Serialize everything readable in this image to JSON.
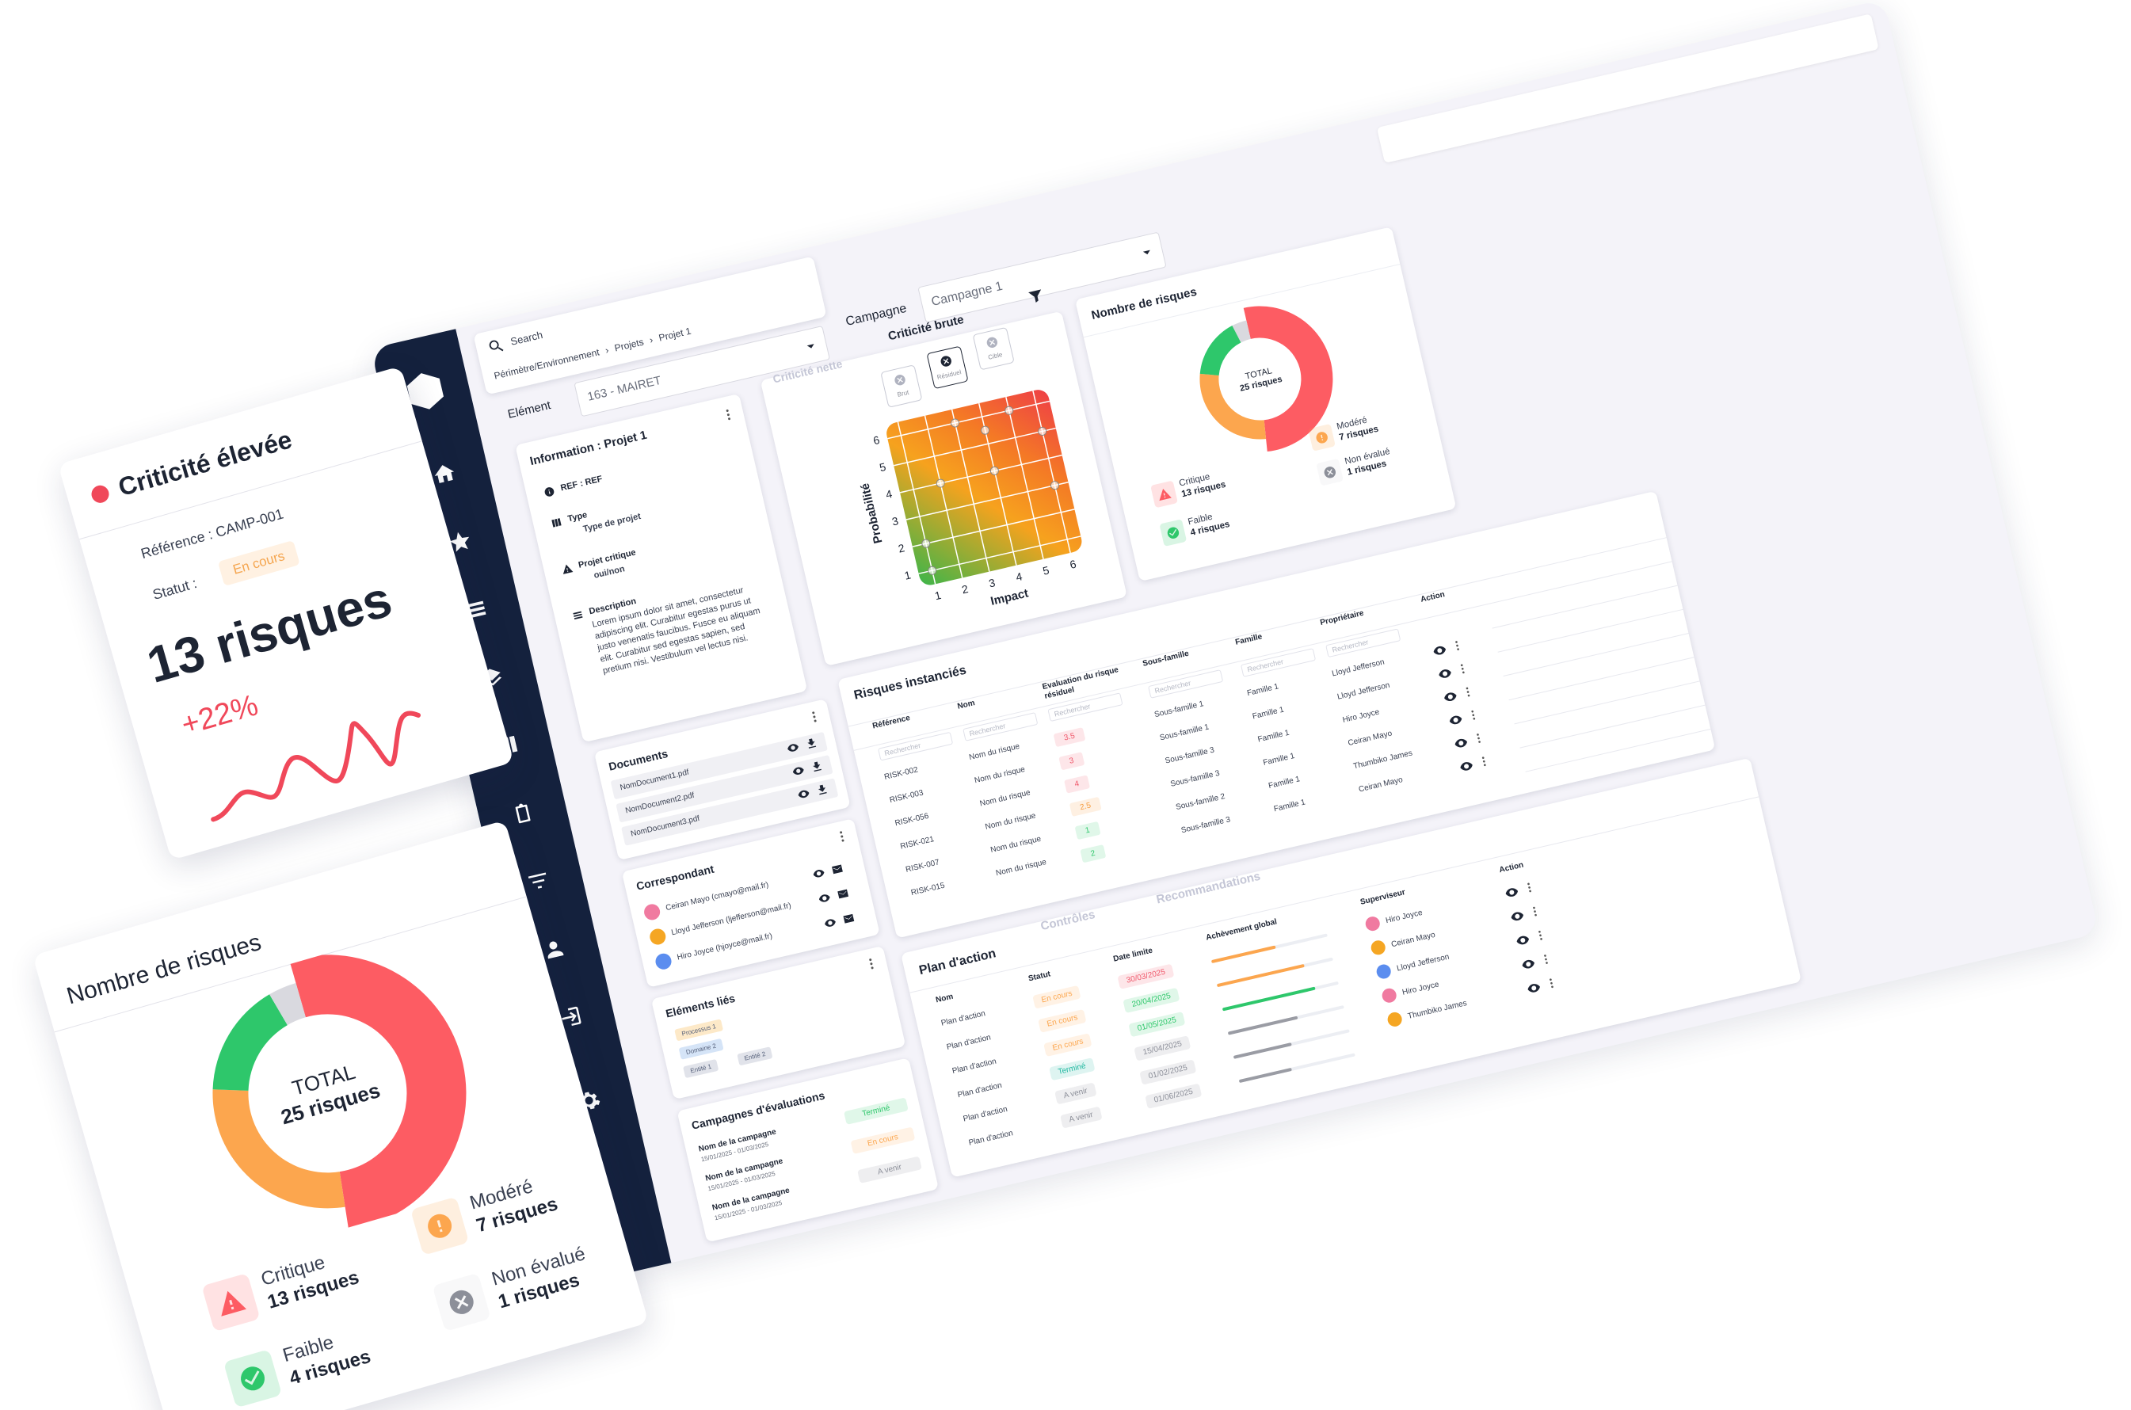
{
  "kpi_card": {
    "title": "Criticité élevée",
    "reference": "Référence : CAMP-001",
    "status_label": "Statut :",
    "status": "En cours",
    "count": "13 risques",
    "change": "+22%"
  },
  "risk_summary": {
    "title": "Nombre de risques",
    "total_caption": "TOTAL",
    "total": "25 risques",
    "segments": [
      {
        "name": "Critique",
        "count": 13,
        "label": "13 risques",
        "color": "#fd5c63"
      },
      {
        "name": "Modéré",
        "count": 7,
        "label": "7 risques",
        "color": "#fca64e"
      },
      {
        "name": "Faible",
        "count": 4,
        "label": "4 risques",
        "color": "#2ec76b"
      },
      {
        "name": "Non évalué",
        "count": 1,
        "label": "1 risques",
        "color": "#d9d9df"
      }
    ]
  },
  "header": {
    "search": "Search",
    "breadcrumb": [
      "Périmètre/Environnement",
      "Projets",
      "Projet 1"
    ],
    "campaign_label": "Campagne",
    "campaign": "Campagne 1",
    "element_label": "Elément",
    "element": "163 - MAIRET"
  },
  "information": {
    "title": "Information : Projet 1",
    "ref": "REF : REF",
    "type_label": "Type",
    "type": "Type de projet",
    "critical_label": "Projet critique",
    "critical": "oui/non",
    "description_label": "Description",
    "description": "Lorem ipsum dolor sit amet, consectetur adipiscing elit. Curabitur egestas purus ut justo venenatis faucibus. Fusce eu aliquam elit. Curabitur sed egestas sapien, sed pretium nisi. Vestibulum vel lectus nisi."
  },
  "matrix": {
    "tabs": [
      "Criticité nette",
      "Criticité brute"
    ],
    "views": [
      "Brut",
      "Résiduel",
      "Cible"
    ],
    "x_label": "Impact",
    "y_label": "Probabilité",
    "xlim": [
      0.5,
      6.5
    ],
    "ylim": [
      0.5,
      6.5
    ],
    "xticks": [
      1,
      2,
      3,
      4,
      5,
      6
    ],
    "yticks": [
      1,
      2,
      3,
      4,
      5,
      6
    ],
    "points": [
      {
        "x": 3,
        "y": 6
      },
      {
        "x": 5,
        "y": 6
      },
      {
        "x": 4,
        "y": 5.5
      },
      {
        "x": 6,
        "y": 5
      },
      {
        "x": 2,
        "y": 4
      },
      {
        "x": 4,
        "y": 4
      },
      {
        "x": 6,
        "y": 3
      },
      {
        "x": 1,
        "y": 2
      },
      {
        "x": 1,
        "y": 1
      }
    ]
  },
  "documents": {
    "title": "Documents",
    "files": [
      "NomDocument1.pdf",
      "NomDocument2.pdf",
      "NomDocument3.pdf"
    ]
  },
  "correspondents": {
    "title": "Correspondant",
    "people": [
      "Ceiran Mayo (cmayo@mail.fr)",
      "Lloyd Jefferson (ljefferson@mail.fr)",
      "Hiro Joyce (hjoyce@mail.fr)"
    ]
  },
  "linked": {
    "title": "Eléments liés",
    "tags": [
      "Processus 1",
      "Domaine 2",
      "Entité 1",
      "Entité 2"
    ]
  },
  "campaigns": {
    "title": "Campagnes d'évaluations",
    "rows": [
      {
        "name": "Nom de la campagne",
        "dates": "15/01/2025 - 01/03/2025",
        "status": "Terminé",
        "color": "#2ec76b"
      },
      {
        "name": "Nom de la campagne",
        "dates": "15/01/2025 - 01/03/2025",
        "status": "En cours",
        "color": "#fca64e"
      },
      {
        "name": "Nom de la campagne",
        "dates": "15/01/2025 - 01/03/2025",
        "status": "A venir",
        "color": "#8c8f99"
      }
    ]
  },
  "risks": {
    "title": "Risques instanciés",
    "columns": [
      "Référence",
      "Nom",
      "Evaluation du risque résiduel",
      "Sous-famille",
      "Famille",
      "Propriétaire",
      "Action"
    ],
    "search_placeholder": "Rechercher",
    "rows": [
      {
        "ref": "RISK-002",
        "name": "Nom du risque",
        "score": 3.5,
        "color": "#f0576a",
        "subfamily": "Sous-famille 1",
        "family": "Famille 1",
        "owner": "Lloyd Jefferson"
      },
      {
        "ref": "RISK-003",
        "name": "Nom du risque",
        "score": 3,
        "color": "#f0576a",
        "subfamily": "Sous-famille 1",
        "family": "Famille 1",
        "owner": "Lloyd Jefferson"
      },
      {
        "ref": "RISK-056",
        "name": "Nom du risque",
        "score": 4,
        "color": "#f0576a",
        "subfamily": "Sous-famille 3",
        "family": "Famille 1",
        "owner": "Hiro Joyce"
      },
      {
        "ref": "RISK-021",
        "name": "Nom du risque",
        "score": 2.5,
        "color": "#f59a3c",
        "subfamily": "Sous-famille 3",
        "family": "Famille 1",
        "owner": "Ceiran Mayo"
      },
      {
        "ref": "RISK-007",
        "name": "Nom du risque",
        "score": 1,
        "color": "#2ec76b",
        "subfamily": "Sous-famille 2",
        "family": "Famille 1",
        "owner": "Thumbiko James"
      },
      {
        "ref": "RISK-015",
        "name": "Nom du risque",
        "score": 2,
        "color": "#2ec76b",
        "subfamily": "Sous-famille 3",
        "family": "Famille 1",
        "owner": "Ceiran Mayo"
      }
    ]
  },
  "action_plan": {
    "tabs": [
      "Plan d'action",
      "Contrôles",
      "Recommandations"
    ],
    "columns": [
      "Nom",
      "Statut",
      "Date limite",
      "Achèvement global",
      "Superviseur",
      "Action"
    ],
    "progress_range": [
      0,
      100
    ],
    "rows": [
      {
        "name": "Plan d'action",
        "status": "En cours",
        "status_color": "#fca64e",
        "due": "30/03/2025",
        "due_color": "#f0576a",
        "progress": 55,
        "progress_color": "#fca64e",
        "supervisor": "Hiro Joyce"
      },
      {
        "name": "Plan d'action",
        "status": "En cours",
        "status_color": "#fca64e",
        "due": "20/04/2025",
        "due_color": "#2ec76b",
        "progress": 75,
        "progress_color": "#fca64e",
        "supervisor": "Ceiran Mayo"
      },
      {
        "name": "Plan d'action",
        "status": "En cours",
        "status_color": "#fca64e",
        "due": "01/05/2025",
        "due_color": "#2ec76b",
        "progress": 80,
        "progress_color": "#2ec76b",
        "supervisor": "Lloyd Jefferson"
      },
      {
        "name": "Plan d'action",
        "status": "Terminé",
        "status_color": "#20b8a0",
        "due": "15/04/2025",
        "due_color": "#8c8f99",
        "progress": 60,
        "progress_color": "#9a9ca4",
        "supervisor": "Hiro Joyce"
      },
      {
        "name": "Plan d'action",
        "status": "A venir",
        "status_color": "#8c8f99",
        "due": "01/02/2025",
        "due_color": "#8c8f99",
        "progress": 50,
        "progress_color": "#9a9ca4",
        "supervisor": "Thumbiko James"
      },
      {
        "name": "Plan d'action",
        "status": "A venir",
        "status_color": "#8c8f99",
        "due": "01/06/2025",
        "due_color": "#8c8f99",
        "progress": 45,
        "progress_color": "#9a9ca4"
      }
    ]
  }
}
